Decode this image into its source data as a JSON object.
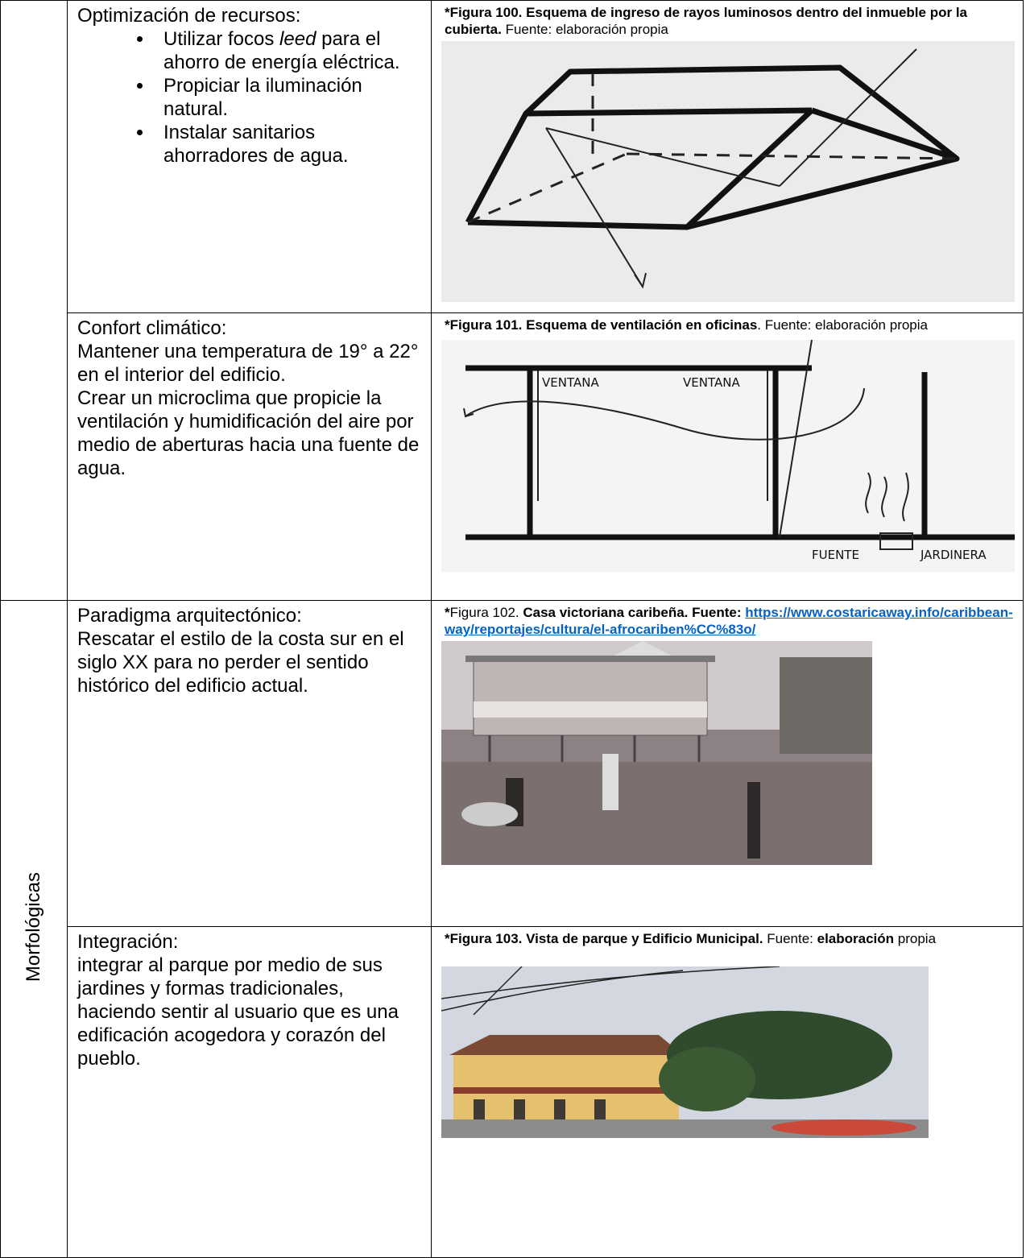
{
  "table": {
    "groups": [
      {
        "rows": [
          {
            "content": {
              "heading": "Optimización de recursos:",
              "bullets": [
                [
                  {
                    "text": "Utilizar focos "
                  },
                  {
                    "text": "leed",
                    "italic": true
                  },
                  {
                    "text": " para el ahorro de energía eléctrica."
                  }
                ],
                [
                  {
                    "text": "Propiciar la iluminación natural."
                  }
                ],
                [
                  {
                    "text": "Instalar sanitarios ahorradores de agua."
                  }
                ]
              ]
            },
            "figure": {
              "caption": [
                {
                  "text": "*Figura 100. Esquema de ingreso de rayos luminosos dentro del inmueble por la cubierta.",
                  "bold": true
                },
                {
                  "text": " Fuente: elaboración propia"
                }
              ]
            }
          },
          {
            "content": {
              "heading": "Confort climático:",
              "paragraphs": [
                "Mantener una temperatura de 19° a 22° en el interior del edificio.",
                "Crear un microclima que propicie la ventilación y humidificación del aire por medio de aberturas hacia una fuente de agua."
              ]
            },
            "figure": {
              "caption": [
                {
                  "text": "*Figura 101. Esquema de ventilación en oficinas",
                  "bold": true
                },
                {
                  "text": ". Fuente: elaboración propia"
                }
              ],
              "labels": [
                "VENTANA",
                "VENTANA",
                "FUENTE",
                "JARDINERA"
              ]
            }
          }
        ]
      },
      {
        "category": "Morfológicas",
        "rows": [
          {
            "content": {
              "heading": "Paradigma arquitectónico:",
              "paragraphs": [
                "Rescatar el estilo de la costa sur en el siglo XX para no perder el sentido histórico del edificio actual."
              ]
            },
            "figure": {
              "caption": [
                {
                  "text": "*",
                  "bold": true
                },
                {
                  "text": "Figura 102. "
                },
                {
                  "text": "Casa victoriana caribeña. Fuente: ",
                  "bold": true
                },
                {
                  "text": "https://www.costaricaway.info/caribbean-way/reportajes/cultura/el-afrocariben%CC%83o/",
                  "bold": true,
                  "link": true
                }
              ]
            }
          },
          {
            "content": {
              "heading": "Integración:",
              "paragraphs": [
                "integrar al parque por medio de sus jardines y formas tradicionales, haciendo sentir al usuario que es una edificación acogedora y corazón del pueblo."
              ]
            },
            "figure": {
              "caption": [
                {
                  "text": "*Figura 103. Vista de parque y Edificio Municipal.",
                  "bold": true
                },
                {
                  "text": " Fuente: "
                },
                {
                  "text": "elaboración",
                  "bold": true
                },
                {
                  "text": " propia"
                }
              ]
            }
          }
        ]
      }
    ]
  }
}
